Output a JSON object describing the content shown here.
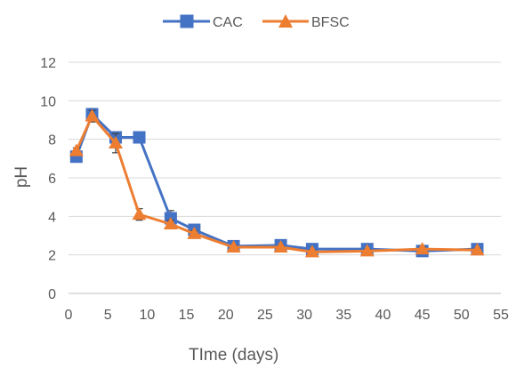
{
  "chart_data": {
    "type": "line",
    "xlabel": "TIme (days)",
    "ylabel": "pH",
    "xlim": [
      0,
      55
    ],
    "ylim": [
      0,
      12
    ],
    "x_ticks": [
      0,
      5,
      10,
      15,
      20,
      25,
      30,
      35,
      40,
      45,
      50,
      55
    ],
    "y_ticks": [
      0,
      2,
      4,
      6,
      8,
      10,
      12
    ],
    "grid": "horizontal",
    "legend_position": "top",
    "series": [
      {
        "name": "CAC",
        "color": "#4472C4",
        "marker": "square",
        "points": [
          {
            "x": 1,
            "y": 7.1,
            "err": 0.2
          },
          {
            "x": 3,
            "y": 9.3,
            "err": 0.3
          },
          {
            "x": 6,
            "y": 8.1,
            "err": 0.2
          },
          {
            "x": 9,
            "y": 8.1,
            "err": 0.1
          },
          {
            "x": 13,
            "y": 3.9,
            "err": 0.4
          },
          {
            "x": 16,
            "y": 3.3,
            "err": 0.15
          },
          {
            "x": 21,
            "y": 2.45,
            "err": 0.1
          },
          {
            "x": 27,
            "y": 2.5,
            "err": 0.1
          },
          {
            "x": 31,
            "y": 2.3,
            "err": 0.1
          },
          {
            "x": 38,
            "y": 2.3,
            "err": 0.1
          },
          {
            "x": 45,
            "y": 2.2,
            "err": 0.1
          },
          {
            "x": 52,
            "y": 2.3,
            "err": 0.1
          }
        ]
      },
      {
        "name": "BFSC",
        "color": "#ED7D31",
        "marker": "triangle",
        "points": [
          {
            "x": 1,
            "y": 7.4,
            "err": 0.15
          },
          {
            "x": 3,
            "y": 9.2,
            "err": 0.3
          },
          {
            "x": 6,
            "y": 7.8,
            "err": 0.5
          },
          {
            "x": 9,
            "y": 4.1,
            "err": 0.3
          },
          {
            "x": 13,
            "y": 3.6,
            "err": 0.2
          },
          {
            "x": 16,
            "y": 3.1,
            "err": 0.15
          },
          {
            "x": 21,
            "y": 2.4,
            "err": 0.1
          },
          {
            "x": 27,
            "y": 2.4,
            "err": 0.1
          },
          {
            "x": 31,
            "y": 2.15,
            "err": 0.1
          },
          {
            "x": 38,
            "y": 2.2,
            "err": 0.1
          },
          {
            "x": 45,
            "y": 2.3,
            "err": 0.1
          },
          {
            "x": 52,
            "y": 2.25,
            "err": 0.1
          }
        ]
      }
    ]
  }
}
